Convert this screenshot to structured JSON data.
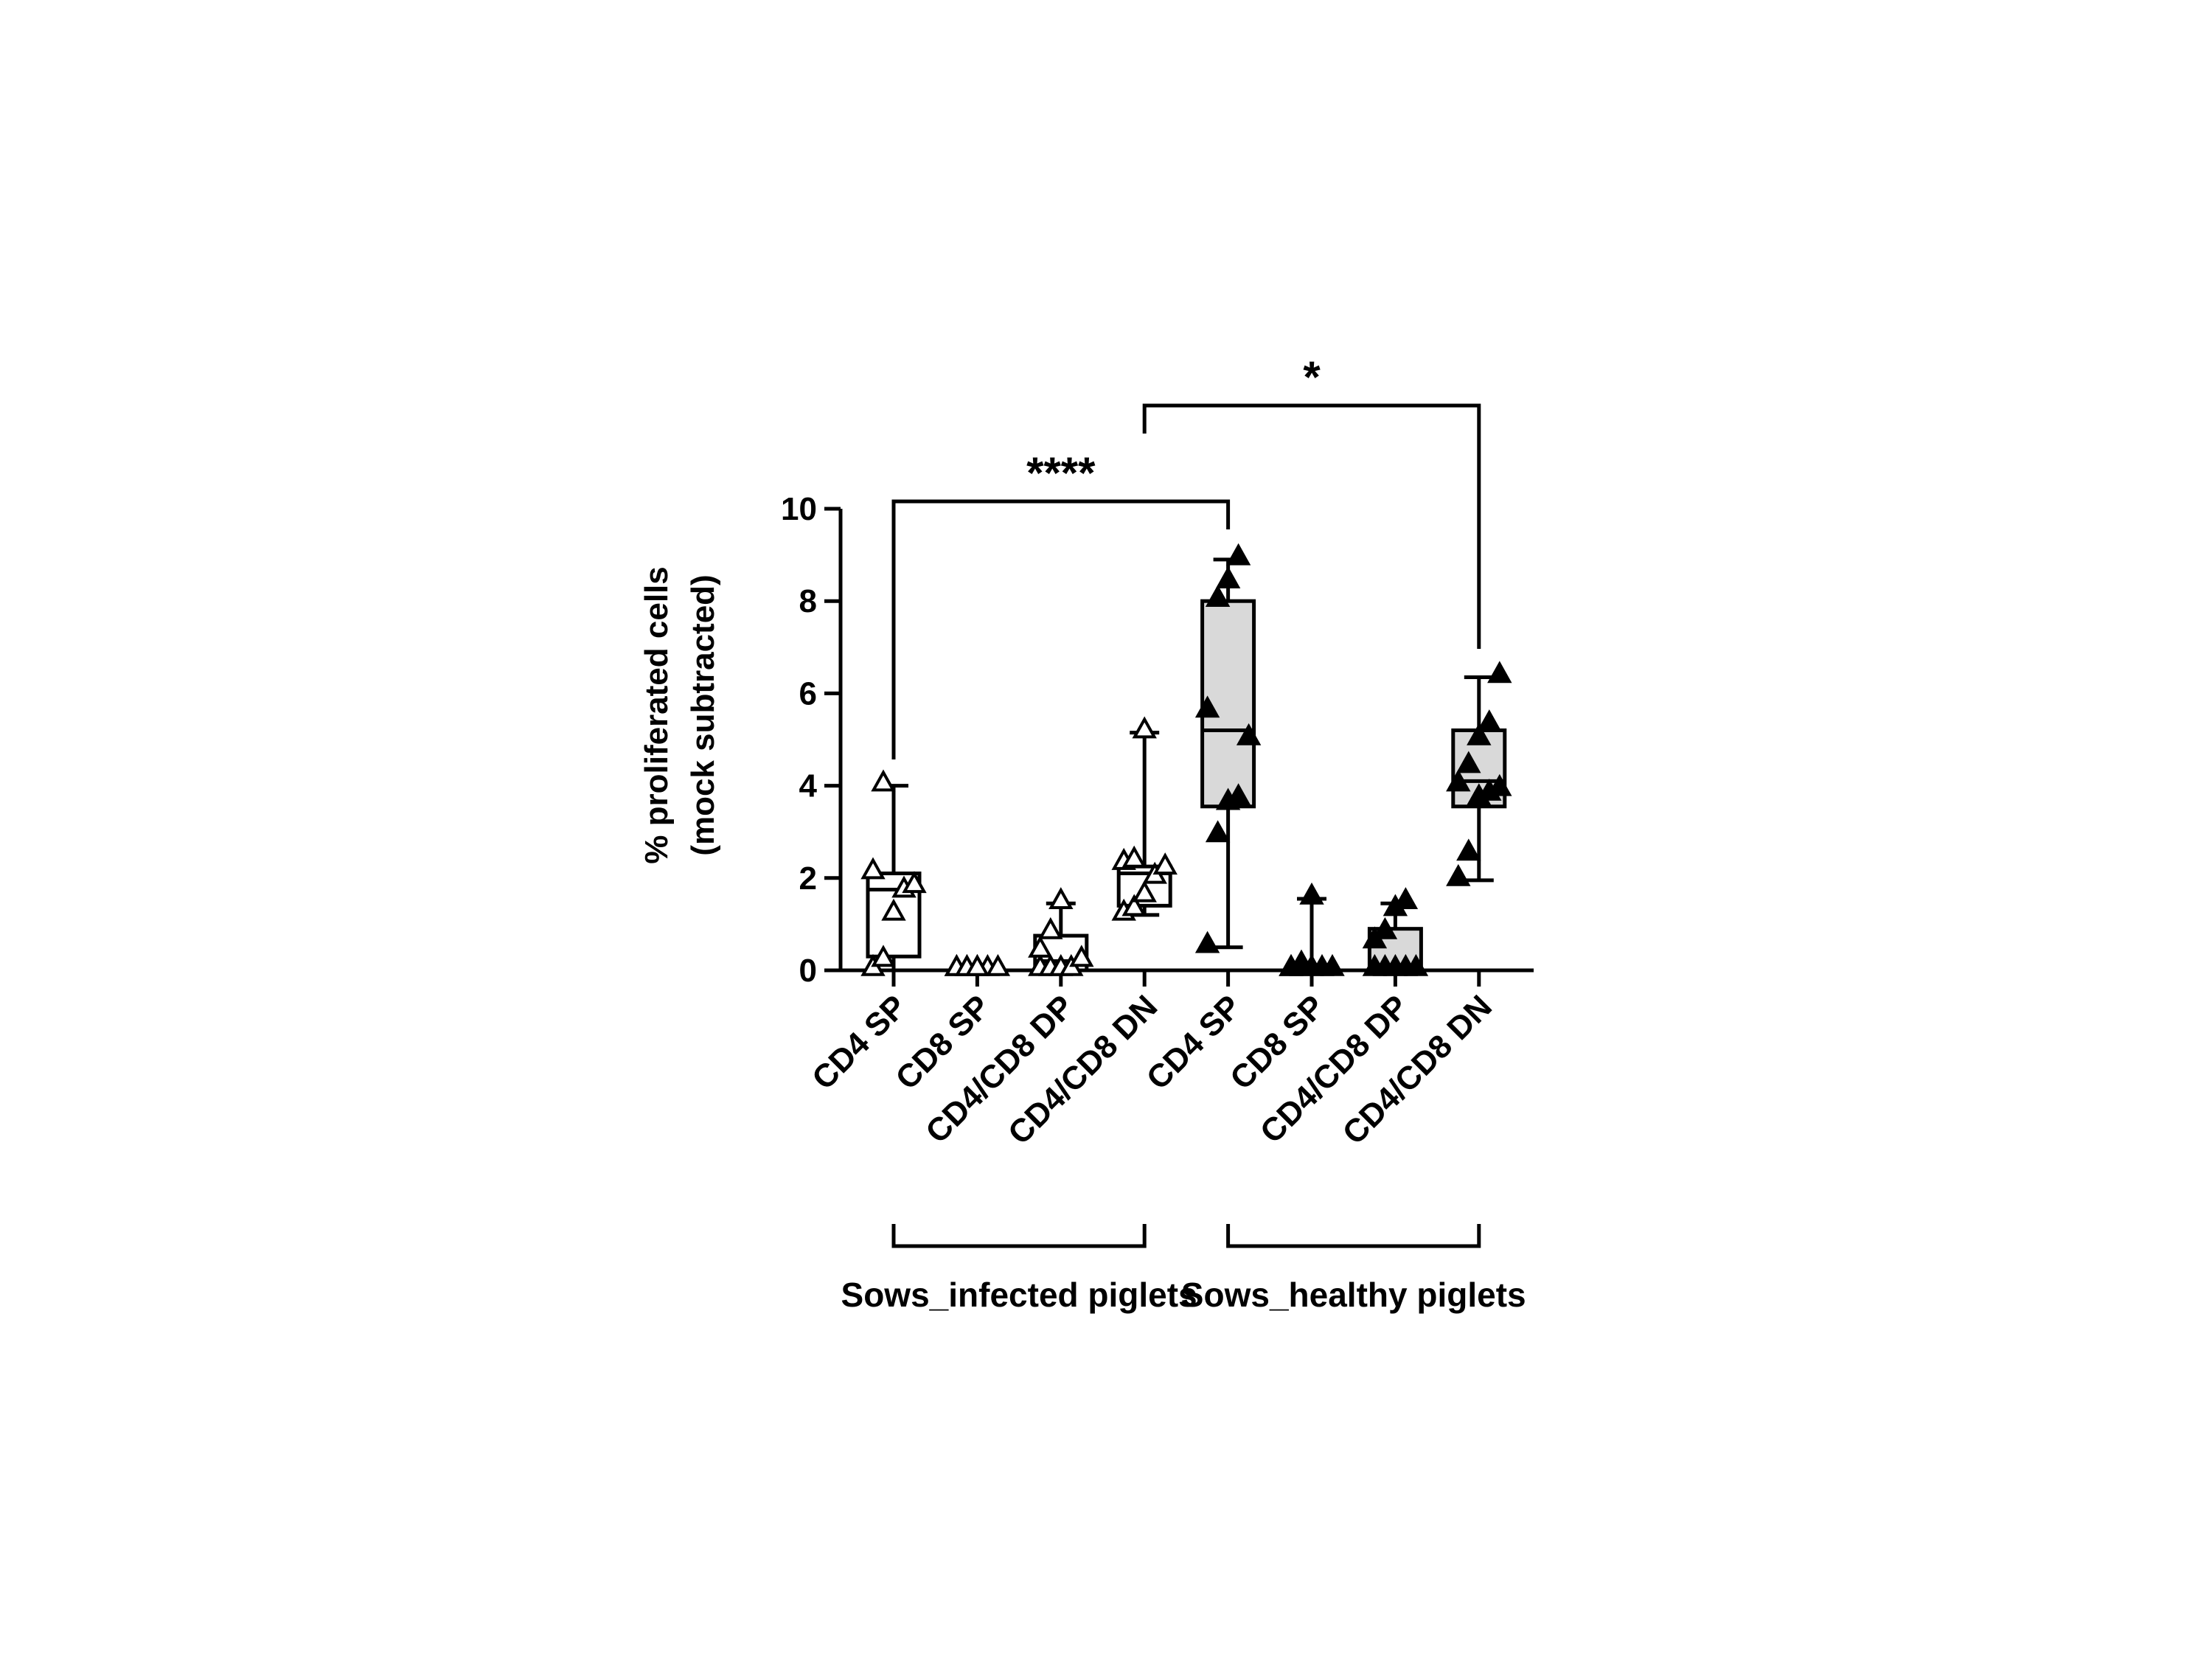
{
  "chart_data": {
    "type": "box",
    "ylabel": "% proliferated cells",
    "ylabel_sub": "(mock subtracted)",
    "ylim": [
      0,
      10
    ],
    "yticks": [
      "0",
      "2",
      "4",
      "6",
      "8",
      "10"
    ],
    "grid": false,
    "categories": [
      "CD4 SP",
      "CD8 SP",
      "CD4/CD8 DP",
      "CD4/CD8 DN",
      "CD4 SP",
      "CD8 SP",
      "CD4/CD8 DP",
      "CD4/CD8 DN"
    ],
    "groups": [
      {
        "label": "Sows_infected piglets",
        "from": 0,
        "to": 3
      },
      {
        "label": "Sows_healthy piglets",
        "from": 4,
        "to": 7
      }
    ],
    "series": [
      {
        "category_index": 0,
        "fill": "#ffffff",
        "marker": "open-triangle",
        "whisker": [
          0,
          4.0
        ],
        "box": [
          0.3,
          2.1
        ],
        "median": 1.75,
        "points": [
          0,
          0.2,
          1.2,
          1.7,
          1.8,
          2.1,
          4.0
        ]
      },
      {
        "category_index": 1,
        "fill": "#ffffff",
        "marker": "open-triangle",
        "whisker": [
          0,
          0
        ],
        "box": [
          0,
          0
        ],
        "median": 0,
        "points": [
          0,
          0,
          0,
          0,
          0,
          0,
          0,
          0
        ]
      },
      {
        "category_index": 2,
        "fill": "#ffffff",
        "marker": "open-triangle",
        "whisker": [
          0,
          1.45
        ],
        "box": [
          0,
          0.75
        ],
        "median": 0.2,
        "points": [
          0,
          0,
          0,
          0,
          0.2,
          0.4,
          0.8,
          1.45
        ]
      },
      {
        "category_index": 3,
        "fill": "#ffffff",
        "marker": "open-triangle",
        "whisker": [
          1.2,
          5.15
        ],
        "box": [
          1.4,
          2.25
        ],
        "median": 2.1,
        "points": [
          1.2,
          1.3,
          1.6,
          2.0,
          2.2,
          2.3,
          2.35,
          5.15
        ]
      },
      {
        "category_index": 4,
        "fill": "#d9d9d9",
        "marker": "filled-triangle",
        "whisker": [
          0.5,
          8.9
        ],
        "box": [
          3.55,
          8.0
        ],
        "median": 5.2,
        "points": [
          0.5,
          2.9,
          3.6,
          3.7,
          5.0,
          5.6,
          8.0,
          8.4,
          8.9
        ]
      },
      {
        "category_index": 5,
        "fill": "#d9d9d9",
        "marker": "filled-triangle",
        "whisker": [
          0,
          1.55
        ],
        "box": [
          0,
          0
        ],
        "median": 0,
        "points": [
          0,
          0,
          0,
          0,
          0,
          0,
          0.1,
          1.55
        ]
      },
      {
        "category_index": 6,
        "fill": "#d9d9d9",
        "marker": "filled-triangle",
        "whisker": [
          0,
          1.45
        ],
        "box": [
          0,
          0.9
        ],
        "median": 0,
        "points": [
          0,
          0,
          0,
          0,
          0,
          0.6,
          0.8,
          1.3,
          1.45
        ]
      },
      {
        "category_index": 7,
        "fill": "#d9d9d9",
        "marker": "filled-triangle",
        "whisker": [
          1.95,
          6.35
        ],
        "box": [
          3.55,
          5.2
        ],
        "median": 4.1,
        "points": [
          1.95,
          2.5,
          3.7,
          3.8,
          3.9,
          4.0,
          4.4,
          5.0,
          5.3,
          6.35
        ]
      }
    ],
    "significance": [
      {
        "from": 0,
        "to": 4,
        "label": "****",
        "level": 10.0
      },
      {
        "from": 3,
        "to": 7,
        "label": "*",
        "level": 12.1
      }
    ]
  }
}
